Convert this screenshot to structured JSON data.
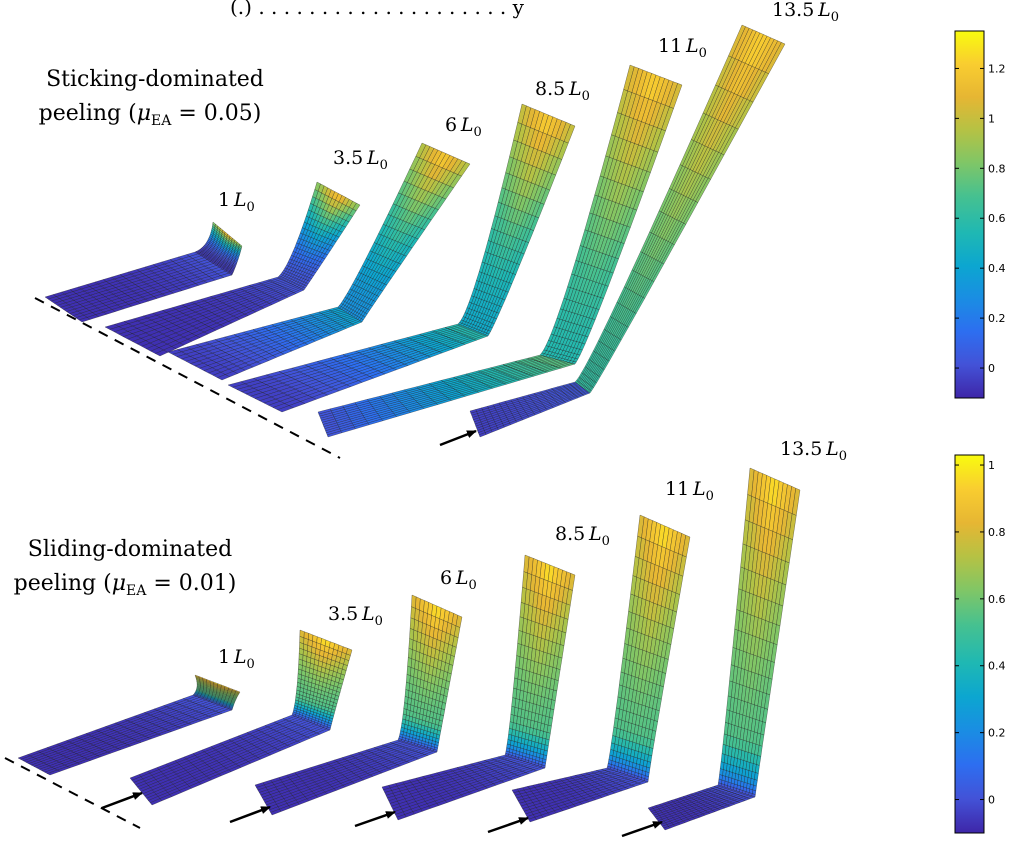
{
  "figure": {
    "title_partial": "(.) . . . . . . . . . . . . . . . . . . . . y",
    "colors": {
      "parula": [
        "#3e26a8",
        "#4352d7",
        "#2d6ef0",
        "#1a8de3",
        "#0ca6d0",
        "#1fb8b3",
        "#46c190",
        "#7fc667",
        "#b5c244",
        "#e6b633",
        "#f9cd30",
        "#f9fb0e"
      ],
      "mesh_line": "#1a1a1a",
      "dash_line": "#000000"
    }
  },
  "panels": [
    {
      "id": "sticking",
      "heading_line1": "Sticking-dominated",
      "heading_line2_prefix": "peeling (",
      "heading_mu_symbol": "μ",
      "heading_mu_sub": "EA",
      "heading_mu_value": " = 0.05)",
      "strip_labels": [
        {
          "num": "1",
          "unit": "L",
          "sub": "0"
        },
        {
          "num": "3.5",
          "unit": "L",
          "sub": "0"
        },
        {
          "num": "6",
          "unit": "L",
          "sub": "0"
        },
        {
          "num": "8.5",
          "unit": "L",
          "sub": "0"
        },
        {
          "num": "11",
          "unit": "L",
          "sub": "0"
        },
        {
          "num": "13.5",
          "unit": "L",
          "sub": "0"
        }
      ],
      "colorbar": {
        "ticks": [
          "1.2",
          "1",
          "0.8",
          "0.6",
          "0.4",
          "0.2",
          "0"
        ],
        "tick_values": [
          1.2,
          1.0,
          0.8,
          0.6,
          0.4,
          0.2,
          0.0
        ],
        "range": [
          -0.12,
          1.35
        ]
      }
    },
    {
      "id": "sliding",
      "heading_line1": "Sliding-dominated",
      "heading_line2_prefix": "peeling (",
      "heading_mu_symbol": "μ",
      "heading_mu_sub": "EA",
      "heading_mu_value": " = 0.01)",
      "strip_labels": [
        {
          "num": "1",
          "unit": "L",
          "sub": "0"
        },
        {
          "num": "3.5",
          "unit": "L",
          "sub": "0"
        },
        {
          "num": "6",
          "unit": "L",
          "sub": "0"
        },
        {
          "num": "8.5",
          "unit": "L",
          "sub": "0"
        },
        {
          "num": "11",
          "unit": "L",
          "sub": "0"
        },
        {
          "num": "13.5",
          "unit": "L",
          "sub": "0"
        }
      ],
      "colorbar": {
        "ticks": [
          "1",
          "0.8",
          "0.6",
          "0.4",
          "0.2",
          "0"
        ],
        "tick_values": [
          1.0,
          0.8,
          0.6,
          0.4,
          0.2,
          0.0
        ],
        "range": [
          -0.1,
          1.03
        ]
      }
    }
  ]
}
